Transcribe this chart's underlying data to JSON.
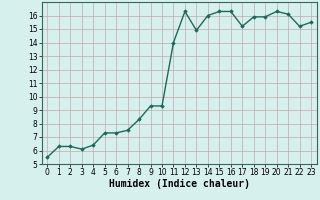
{
  "x": [
    0,
    1,
    2,
    3,
    4,
    5,
    6,
    7,
    8,
    9,
    10,
    11,
    12,
    13,
    14,
    15,
    16,
    17,
    18,
    19,
    20,
    21,
    22,
    23
  ],
  "y": [
    5.5,
    6.3,
    6.3,
    6.1,
    6.4,
    7.3,
    7.3,
    7.5,
    8.3,
    9.3,
    9.3,
    14.0,
    16.3,
    14.9,
    16.0,
    16.3,
    16.3,
    15.2,
    15.9,
    15.9,
    16.3,
    16.1,
    15.2,
    15.5
  ],
  "line_color": "#1a6b5a",
  "marker": "D",
  "marker_size": 1.8,
  "xlabel": "Humidex (Indice chaleur)",
  "xlabel_fontsize": 7,
  "xlabel_bold": true,
  "xlim": [
    -0.5,
    23.5
  ],
  "ylim": [
    5,
    17
  ],
  "yticks": [
    5,
    6,
    7,
    8,
    9,
    10,
    11,
    12,
    13,
    14,
    15,
    16
  ],
  "xticks": [
    0,
    1,
    2,
    3,
    4,
    5,
    6,
    7,
    8,
    9,
    10,
    11,
    12,
    13,
    14,
    15,
    16,
    17,
    18,
    19,
    20,
    21,
    22,
    23
  ],
  "bg_color": "#d6f0ee",
  "grid_color_major": "#c8a8a8",
  "grid_color_minor": "#c8a8a8",
  "tick_fontsize": 5.5,
  "line_width": 1.0
}
